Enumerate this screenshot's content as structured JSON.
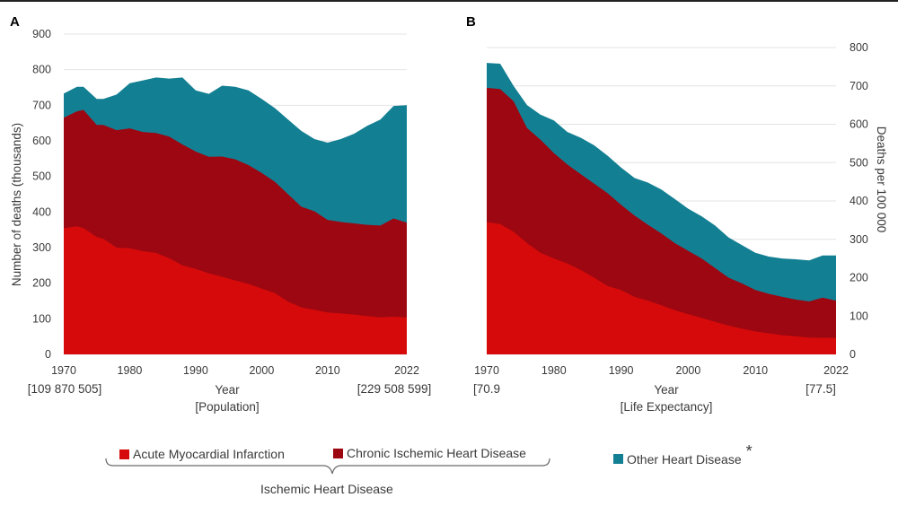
{
  "colors": {
    "acute": "#d60a0a",
    "chronic": "#9c0712",
    "other": "#137f93",
    "grid": "#e4e4e4"
  },
  "legend": {
    "acute": "Acute Myocardial Infarction",
    "chronic": "Chronic Ischemic Heart Disease",
    "other": "Other Heart Disease",
    "asterisk": "*",
    "group": "Ischemic Heart Disease"
  },
  "chart_data": [
    {
      "panel": "A",
      "type": "area",
      "stacked": true,
      "ylabel": "Number of deaths (thousands)",
      "xlabel": "Year",
      "xsublabel": "[Population]",
      "xlim": [
        1970,
        2022
      ],
      "ylim": [
        0,
        900
      ],
      "yticks": [
        0,
        100,
        200,
        300,
        400,
        500,
        600,
        700,
        800,
        900
      ],
      "xtick_labels": [
        {
          "x": 1970,
          "label": "1970"
        },
        {
          "x": 1980,
          "label": "1980"
        },
        {
          "x": 1990,
          "label": "1990"
        },
        {
          "x": 2000,
          "label": "2000"
        },
        {
          "x": 2010,
          "label": "2010"
        },
        {
          "x": 2022,
          "label": "2022"
        }
      ],
      "x_start_note": "[109 870 505]",
      "x_end_note": "[229 508 599]",
      "y_axis_side": "left",
      "x": [
        1970,
        1972,
        1973,
        1975,
        1976,
        1978,
        1980,
        1982,
        1984,
        1986,
        1988,
        1990,
        1992,
        1994,
        1996,
        1998,
        2000,
        2002,
        2004,
        2006,
        2008,
        2010,
        2012,
        2014,
        2016,
        2018,
        2020,
        2022
      ],
      "series": [
        {
          "name": "Acute Myocardial Infarction",
          "key": "acute",
          "values": [
            355,
            360,
            355,
            330,
            325,
            300,
            298,
            290,
            285,
            270,
            250,
            240,
            228,
            218,
            208,
            198,
            185,
            172,
            148,
            132,
            125,
            118,
            115,
            112,
            108,
            104,
            106,
            104
          ]
        },
        {
          "name": "Chronic Ischemic Heart Disease",
          "key": "chronic",
          "values": [
            665,
            683,
            687,
            645,
            645,
            630,
            635,
            625,
            622,
            612,
            590,
            570,
            555,
            556,
            548,
            532,
            510,
            485,
            450,
            415,
            402,
            378,
            372,
            368,
            364,
            362,
            382,
            370
          ]
        },
        {
          "name": "Other Heart Disease",
          "key": "other",
          "values": [
            733,
            752,
            752,
            718,
            718,
            730,
            762,
            770,
            778,
            775,
            778,
            742,
            732,
            755,
            752,
            742,
            718,
            692,
            660,
            628,
            605,
            595,
            605,
            620,
            642,
            660,
            698,
            700
          ]
        }
      ]
    },
    {
      "panel": "B",
      "type": "area",
      "stacked": true,
      "ylabel": "Deaths per 100 000",
      "xlabel": "Year",
      "xsublabel": "[Life Expectancy]",
      "xlim": [
        1970,
        2022
      ],
      "ylim": [
        0,
        800
      ],
      "yticks": [
        0,
        100,
        200,
        300,
        400,
        500,
        600,
        700,
        800
      ],
      "xtick_labels": [
        {
          "x": 1970,
          "label": "1970"
        },
        {
          "x": 1980,
          "label": "1980"
        },
        {
          "x": 1990,
          "label": "1990"
        },
        {
          "x": 2000,
          "label": "2000"
        },
        {
          "x": 2010,
          "label": "2010"
        },
        {
          "x": 2022,
          "label": "2022"
        }
      ],
      "x_start_note": "[70.9",
      "x_end_note": "[77.5]",
      "y_axis_side": "right",
      "x": [
        1970,
        1972,
        1974,
        1976,
        1978,
        1980,
        1982,
        1984,
        1986,
        1988,
        1990,
        1992,
        1994,
        1996,
        1998,
        2000,
        2002,
        2004,
        2006,
        2008,
        2010,
        2012,
        2014,
        2016,
        2018,
        2020,
        2022
      ],
      "series": [
        {
          "name": "Acute Myocardial Infarction",
          "key": "acute",
          "values": [
            345,
            340,
            320,
            290,
            265,
            250,
            237,
            220,
            200,
            178,
            168,
            150,
            140,
            128,
            115,
            105,
            95,
            85,
            75,
            67,
            60,
            55,
            50,
            47,
            44,
            43,
            43
          ]
        },
        {
          "name": "Chronic Ischemic Heart Disease",
          "key": "chronic",
          "values": [
            695,
            692,
            660,
            590,
            560,
            525,
            495,
            470,
            445,
            420,
            390,
            362,
            338,
            315,
            290,
            270,
            250,
            225,
            200,
            185,
            168,
            158,
            150,
            143,
            138,
            148,
            140
          ]
        },
        {
          "name": "Other Heart Disease",
          "key": "other",
          "values": [
            760,
            758,
            700,
            650,
            625,
            610,
            580,
            565,
            545,
            518,
            487,
            460,
            448,
            430,
            405,
            380,
            360,
            336,
            305,
            285,
            265,
            255,
            250,
            248,
            245,
            258,
            258
          ]
        }
      ]
    }
  ]
}
